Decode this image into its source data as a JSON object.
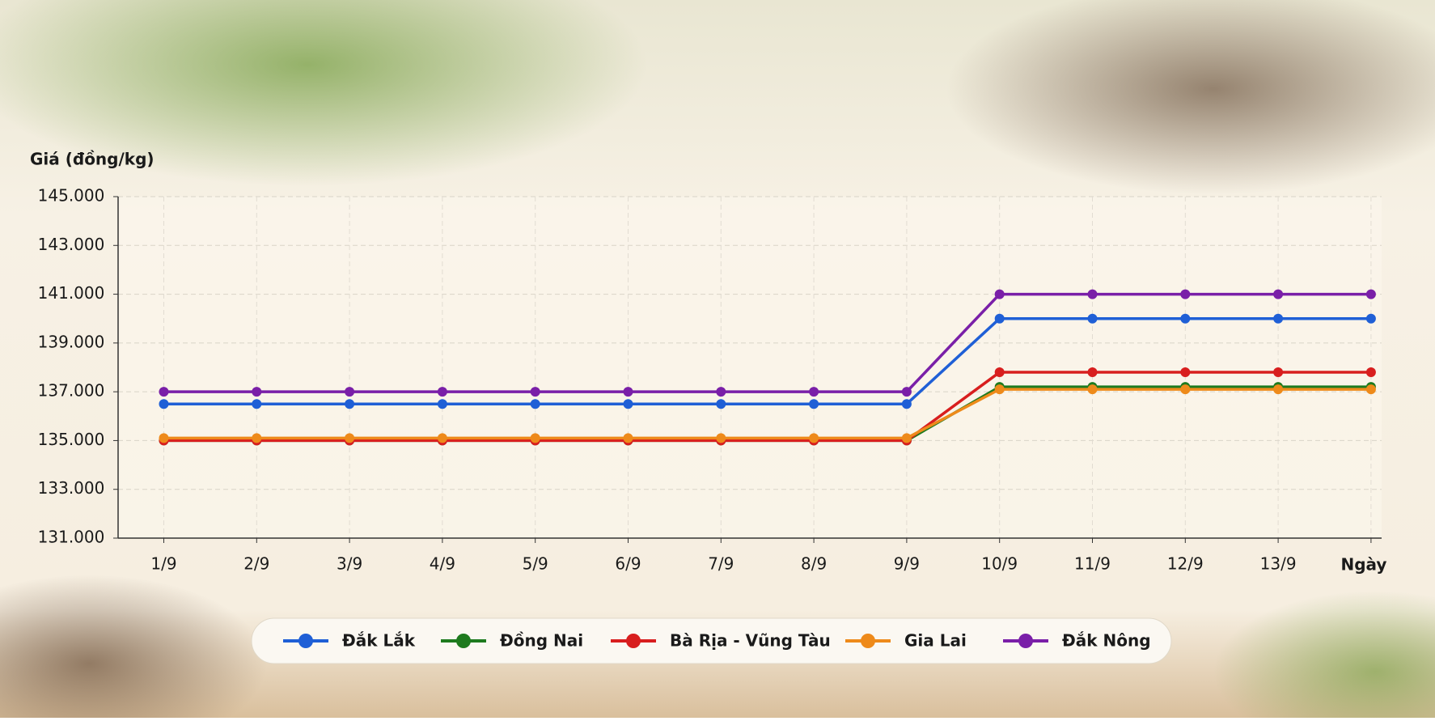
{
  "chart_data": {
    "type": "line",
    "ylabel": "Giá (đồng/kg)",
    "xlabel": "Ngày",
    "categories": [
      "1/9",
      "2/9",
      "3/9",
      "4/9",
      "5/9",
      "6/9",
      "7/9",
      "8/9",
      "9/9",
      "10/9",
      "11/9",
      "12/9",
      "13/9",
      null
    ],
    "series": [
      {
        "name": "Đắk Lắk",
        "color": "#1f5fd6",
        "values": [
          136500,
          136500,
          136500,
          136500,
          136500,
          136500,
          136500,
          136500,
          136500,
          140000,
          140000,
          140000,
          140000,
          140000
        ]
      },
      {
        "name": "Đồng Nai",
        "color": "#1e7a1e",
        "values": [
          135000,
          135000,
          135000,
          135000,
          135000,
          135000,
          135000,
          135000,
          135000,
          137200,
          137200,
          137200,
          137200,
          137200
        ]
      },
      {
        "name": "Bà Rịa - Vũng Tàu",
        "color": "#d81e1e",
        "values": [
          135000,
          135000,
          135000,
          135000,
          135000,
          135000,
          135000,
          135000,
          135000,
          137800,
          137800,
          137800,
          137800,
          137800
        ]
      },
      {
        "name": "Gia Lai",
        "color": "#ee8a1a",
        "values": [
          135100,
          135100,
          135100,
          135100,
          135100,
          135100,
          135100,
          135100,
          135100,
          137100,
          137100,
          137100,
          137100,
          137100
        ]
      },
      {
        "name": "Đắk Nông",
        "color": "#7a1fa8",
        "values": [
          137000,
          137000,
          137000,
          137000,
          137000,
          137000,
          137000,
          137000,
          137000,
          141000,
          141000,
          141000,
          141000,
          141000
        ]
      }
    ],
    "ylim": [
      131000,
      145000
    ],
    "yticks": [
      {
        "value": 131000,
        "label": "131.000"
      },
      {
        "value": 133000,
        "label": "133.000"
      },
      {
        "value": 135000,
        "label": "135.000"
      },
      {
        "value": 137000,
        "label": "137.000"
      },
      {
        "value": 139000,
        "label": "139.000"
      },
      {
        "value": 141000,
        "label": "141.000"
      },
      {
        "value": 143000,
        "label": "143.000"
      },
      {
        "value": 145000,
        "label": "145.000"
      }
    ],
    "grid": true,
    "legend": "bottom"
  }
}
